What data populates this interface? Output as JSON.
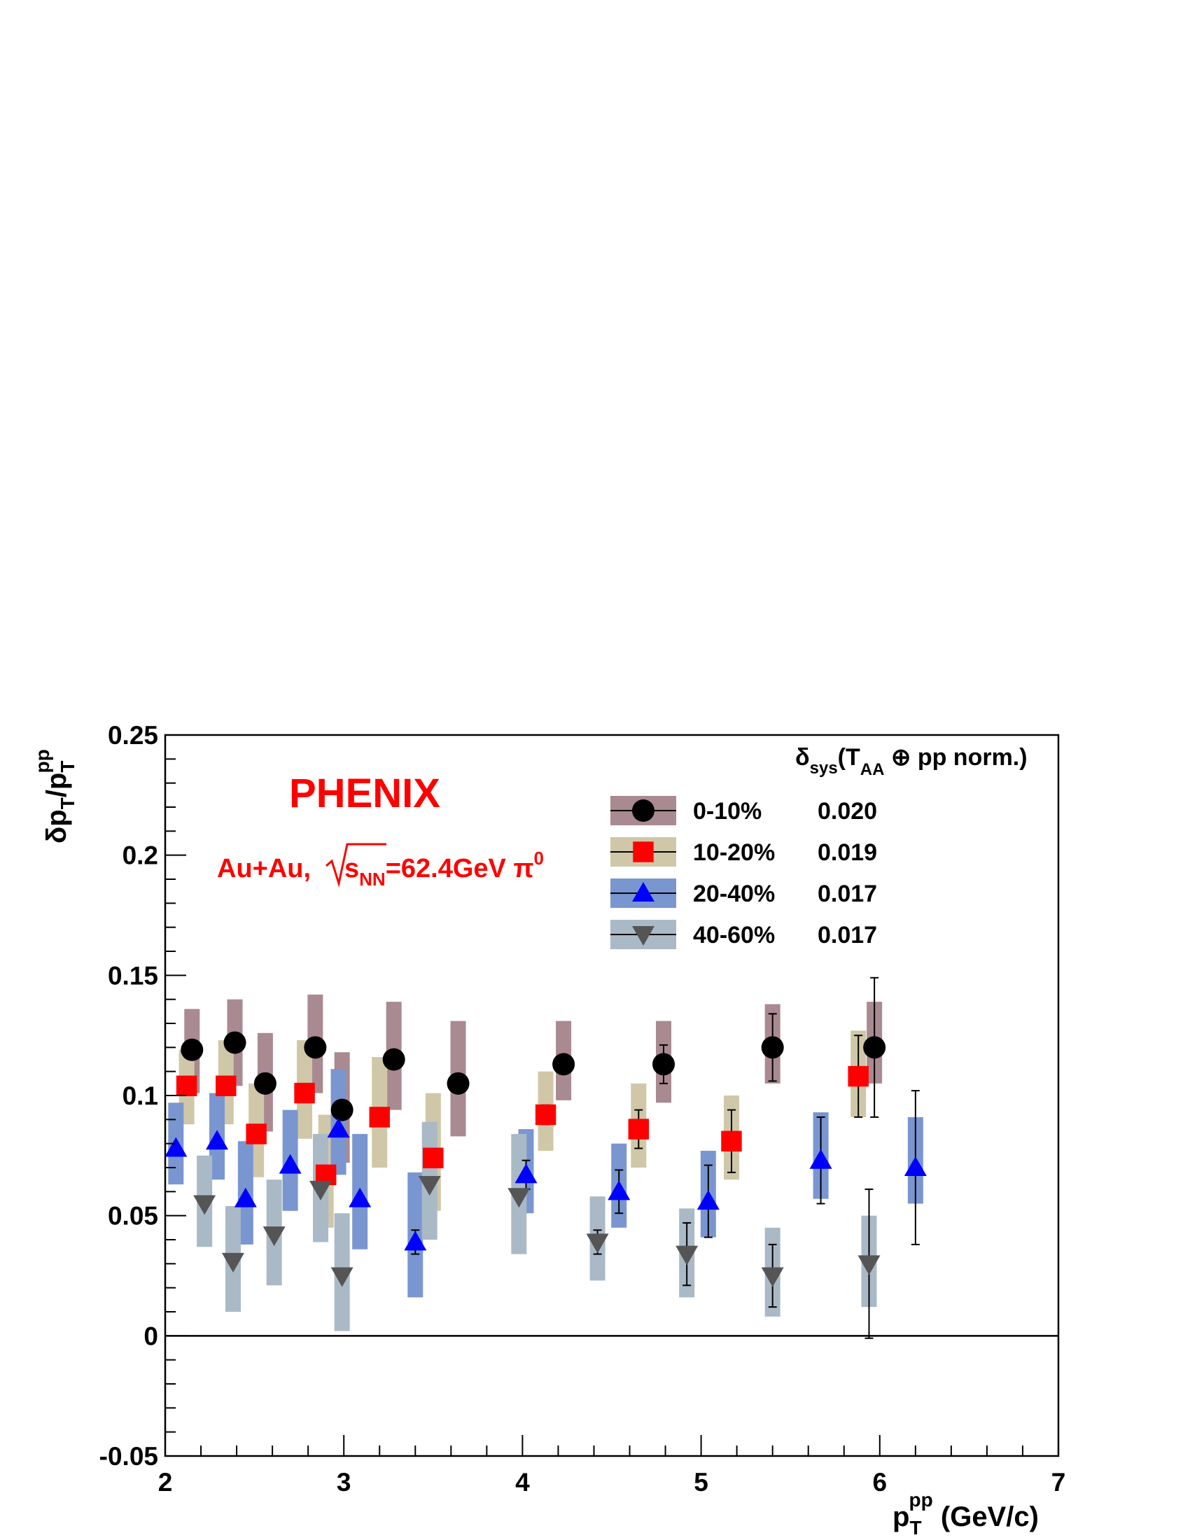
{
  "chart_data": {
    "type": "scatter",
    "xlim": [
      2,
      7
    ],
    "ylim": [
      -0.05,
      0.25
    ],
    "x_ticks": [
      "2",
      "3",
      "4",
      "5",
      "6",
      "7"
    ],
    "y_ticks": [
      "-0.05",
      "0",
      "0.05",
      "0.1",
      "0.15",
      "0.2",
      "0.25"
    ],
    "x_tick_values": [
      2,
      3,
      4,
      5,
      6,
      7
    ],
    "y_tick_values": [
      -0.05,
      0,
      0.05,
      0.1,
      0.15,
      0.2,
      0.25
    ],
    "xlabel": {
      "main": "p",
      "sub": "T",
      "sup": "pp",
      "unit": " (GeV/c)"
    },
    "ylabel": {
      "delta": "δ",
      "p1": "p",
      "sub1": "T",
      "slash": "/p",
      "sub2": "T",
      "sup2": "pp"
    },
    "grid": false,
    "annotations": {
      "experiment": "PHENIX",
      "system_prefix": "Au+Au,",
      "sqrt_s": "s",
      "sqrt_sub": "NN",
      "energy": "=62.4GeV ",
      "particle": "π",
      "particle_sup": "0"
    },
    "legend": {
      "placement": "top-right",
      "header": {
        "delta": "δ",
        "sub": "sys",
        "open": "(T",
        "sub2": "AA",
        "oplus": " ⊕ ",
        "rest": "pp norm.)"
      }
    },
    "series": [
      {
        "name": "0-10%",
        "sys_value": "0.020",
        "marker": "circle",
        "color": "#000000",
        "band_color": "#a88a90",
        "x": [
          2.15,
          2.39,
          2.56,
          2.84,
          2.99,
          3.28,
          3.64,
          4.23,
          4.79,
          5.4,
          5.97
        ],
        "y": [
          0.119,
          0.122,
          0.105,
          0.12,
          0.094,
          0.115,
          0.105,
          0.113,
          0.113,
          0.12,
          0.12
        ],
        "sys_lo": [
          0.101,
          0.104,
          0.085,
          0.101,
          0.072,
          0.094,
          0.083,
          0.098,
          0.097,
          0.105,
          0.105
        ],
        "sys_hi": [
          0.136,
          0.14,
          0.126,
          0.142,
          0.118,
          0.139,
          0.131,
          0.131,
          0.131,
          0.138,
          0.139
        ],
        "err": [
          0,
          0,
          0,
          0,
          0,
          0,
          0,
          0.003,
          0.008,
          0.014,
          0.029
        ]
      },
      {
        "name": "10-20%",
        "sys_value": "0.019",
        "marker": "square",
        "color": "#ff0000",
        "band_color": "#cfc7a8",
        "x": [
          2.12,
          2.34,
          2.51,
          2.78,
          2.9,
          3.2,
          3.5,
          4.13,
          4.65,
          5.17,
          5.88
        ],
        "y": [
          0.104,
          0.104,
          0.084,
          0.101,
          0.067,
          0.091,
          0.074,
          0.092,
          0.086,
          0.081,
          0.108
        ],
        "sys_lo": [
          0.088,
          0.088,
          0.066,
          0.082,
          0.045,
          0.07,
          0.052,
          0.077,
          0.07,
          0.065,
          0.091
        ],
        "sys_hi": [
          0.119,
          0.123,
          0.105,
          0.123,
          0.092,
          0.116,
          0.101,
          0.11,
          0.105,
          0.1,
          0.127
        ],
        "err": [
          0,
          0,
          0,
          0,
          0,
          0,
          0,
          0.004,
          0.008,
          0.013,
          0.017
        ]
      },
      {
        "name": "20-40%",
        "sys_value": "0.017",
        "marker": "triangle-up",
        "color": "#0000ff",
        "band_color": "#7a96d0",
        "x": [
          2.06,
          2.29,
          2.45,
          2.7,
          2.97,
          3.09,
          3.4,
          4.02,
          4.54,
          5.04,
          5.67,
          6.2
        ],
        "y": [
          0.078,
          0.081,
          0.057,
          0.071,
          0.086,
          0.057,
          0.039,
          0.067,
          0.06,
          0.056,
          0.073,
          0.07
        ],
        "sys_lo": [
          0.063,
          0.065,
          0.038,
          0.052,
          0.067,
          0.036,
          0.016,
          0.051,
          0.045,
          0.041,
          0.057,
          0.055
        ],
        "sys_hi": [
          0.097,
          0.101,
          0.081,
          0.094,
          0.111,
          0.084,
          0.068,
          0.086,
          0.08,
          0.077,
          0.093,
          0.091
        ],
        "err": [
          0,
          0,
          0,
          0,
          0,
          0,
          0.005,
          0.006,
          0.009,
          0.015,
          0.018,
          0.032
        ]
      },
      {
        "name": "40-60%",
        "sys_value": "0.017",
        "marker": "triangle-down",
        "color": "#555555",
        "band_color": "#aab9c6",
        "x": [
          2.22,
          2.38,
          2.61,
          2.87,
          2.99,
          3.48,
          3.98,
          4.42,
          4.92,
          5.4,
          5.94
        ],
        "y": [
          0.055,
          0.031,
          0.042,
          0.061,
          0.025,
          0.063,
          0.058,
          0.039,
          0.034,
          0.025,
          0.03
        ],
        "sys_lo": [
          0.037,
          0.01,
          0.021,
          0.039,
          0.002,
          0.04,
          0.034,
          0.023,
          0.016,
          0.008,
          0.012
        ],
        "sys_hi": [
          0.075,
          0.054,
          0.065,
          0.084,
          0.051,
          0.089,
          0.084,
          0.058,
          0.053,
          0.045,
          0.05
        ],
        "err": [
          0,
          0,
          0,
          0,
          0,
          0,
          0,
          0.005,
          0.013,
          0.013,
          0.031
        ]
      }
    ]
  }
}
